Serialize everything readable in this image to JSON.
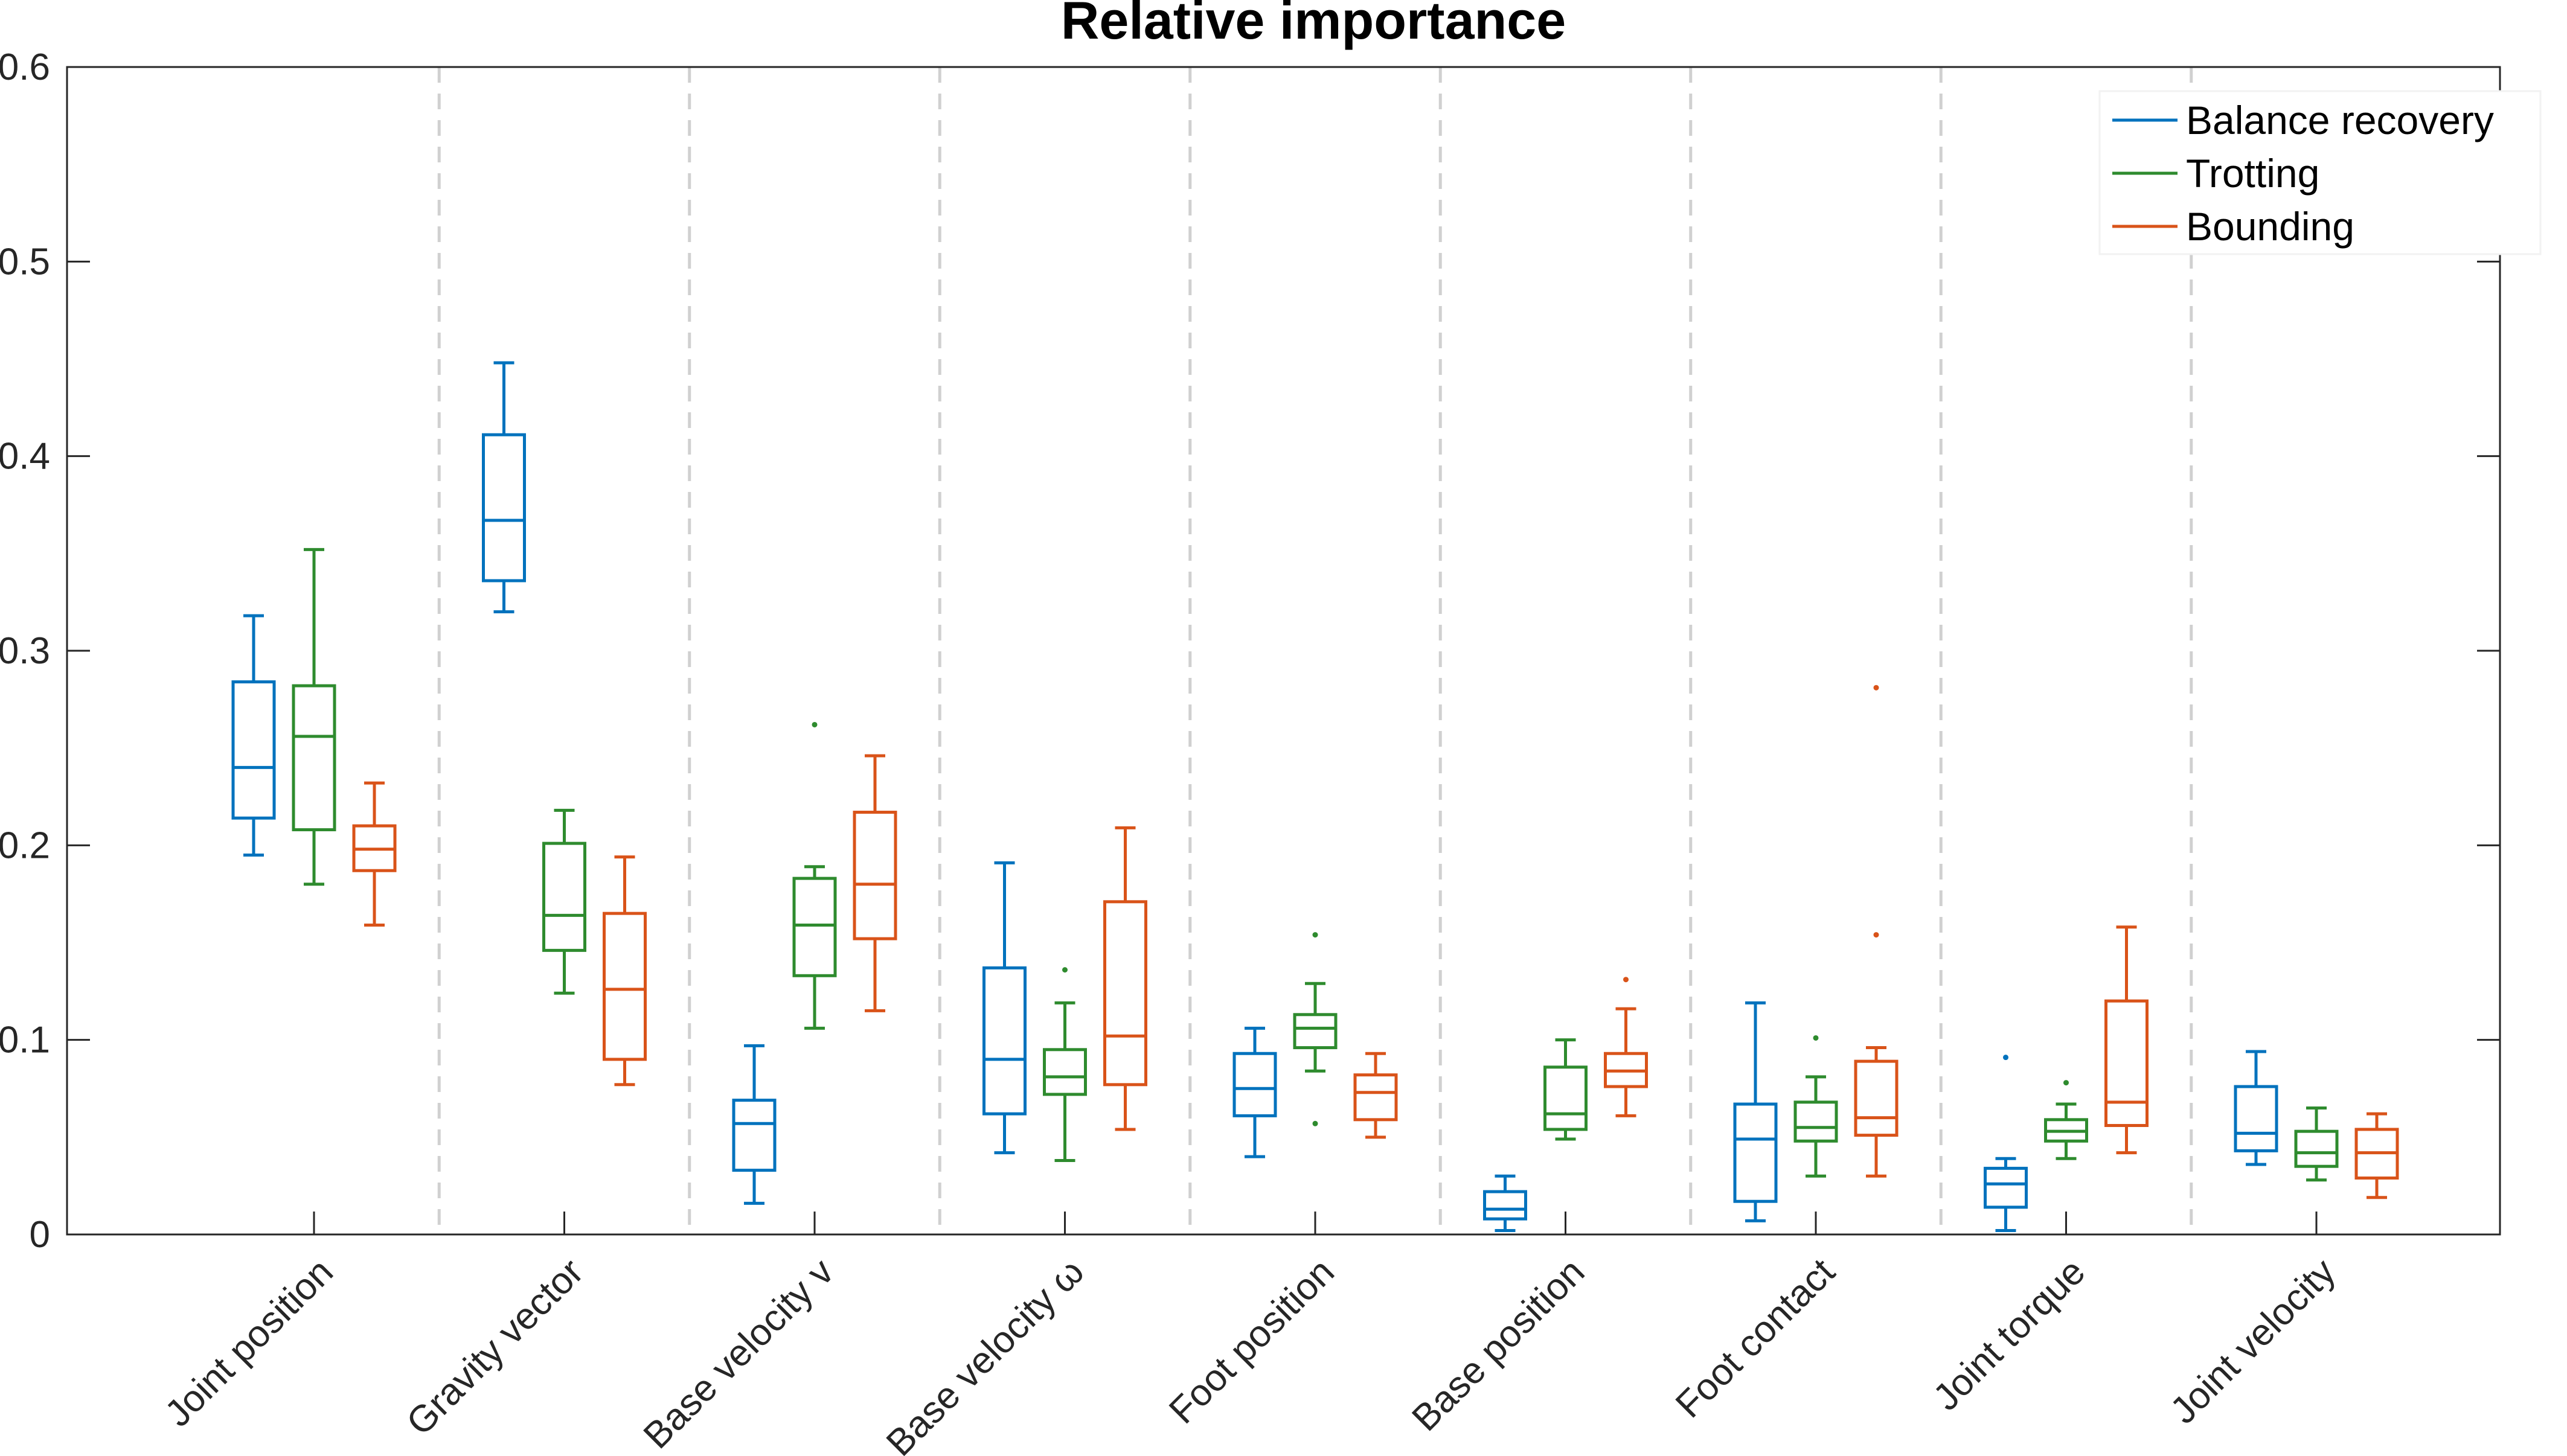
{
  "chart_data": {
    "type": "box",
    "title": "Relative importance",
    "xlabel": "",
    "ylabel": "",
    "ylim": [
      0,
      0.6
    ],
    "yticks": [
      "0",
      "0.1",
      "0.2",
      "0.3",
      "0.4",
      "0.5",
      "0.6"
    ],
    "grid": "dashed vertical separators between categories",
    "legend_position": "top-right",
    "categories": [
      "Joint position",
      "Gravity vector",
      "Base velocity v",
      "Base velocity ω",
      "Foot position",
      "Base position",
      "Foot contact",
      "Joint torque",
      "Joint velocity"
    ],
    "series": [
      {
        "name": "Balance recovery",
        "color": "#0072BD",
        "boxes": [
          {
            "whisker_low": 0.195,
            "q1": 0.214,
            "median": 0.24,
            "q3": 0.284,
            "whisker_high": 0.318,
            "outliers": []
          },
          {
            "whisker_low": 0.32,
            "q1": 0.336,
            "median": 0.367,
            "q3": 0.411,
            "whisker_high": 0.448,
            "outliers": []
          },
          {
            "whisker_low": 0.016,
            "q1": 0.033,
            "median": 0.057,
            "q3": 0.069,
            "whisker_high": 0.097,
            "outliers": []
          },
          {
            "whisker_low": 0.042,
            "q1": 0.062,
            "median": 0.09,
            "q3": 0.137,
            "whisker_high": 0.191,
            "outliers": []
          },
          {
            "whisker_low": 0.04,
            "q1": 0.061,
            "median": 0.075,
            "q3": 0.093,
            "whisker_high": 0.106,
            "outliers": []
          },
          {
            "whisker_low": 0.002,
            "q1": 0.008,
            "median": 0.013,
            "q3": 0.022,
            "whisker_high": 0.03,
            "outliers": []
          },
          {
            "whisker_low": 0.007,
            "q1": 0.017,
            "median": 0.049,
            "q3": 0.067,
            "whisker_high": 0.119,
            "outliers": []
          },
          {
            "whisker_low": 0.002,
            "q1": 0.014,
            "median": 0.026,
            "q3": 0.034,
            "whisker_high": 0.039,
            "outliers": [
              0.091
            ]
          },
          {
            "whisker_low": 0.036,
            "q1": 0.043,
            "median": 0.052,
            "q3": 0.076,
            "whisker_high": 0.094,
            "outliers": []
          }
        ]
      },
      {
        "name": "Trotting",
        "color": "#2E8B2E",
        "boxes": [
          {
            "whisker_low": 0.18,
            "q1": 0.208,
            "median": 0.256,
            "q3": 0.282,
            "whisker_high": 0.352,
            "outliers": []
          },
          {
            "whisker_low": 0.124,
            "q1": 0.146,
            "median": 0.164,
            "q3": 0.201,
            "whisker_high": 0.218,
            "outliers": []
          },
          {
            "whisker_low": 0.106,
            "q1": 0.133,
            "median": 0.159,
            "q3": 0.183,
            "whisker_high": 0.189,
            "outliers": [
              0.262
            ]
          },
          {
            "whisker_low": 0.038,
            "q1": 0.072,
            "median": 0.081,
            "q3": 0.095,
            "whisker_high": 0.119,
            "outliers": [
              0.136
            ]
          },
          {
            "whisker_low": 0.084,
            "q1": 0.096,
            "median": 0.106,
            "q3": 0.113,
            "whisker_high": 0.129,
            "outliers": [
              0.154,
              0.057
            ]
          },
          {
            "whisker_low": 0.049,
            "q1": 0.054,
            "median": 0.062,
            "q3": 0.086,
            "whisker_high": 0.1,
            "outliers": []
          },
          {
            "whisker_low": 0.03,
            "q1": 0.048,
            "median": 0.055,
            "q3": 0.068,
            "whisker_high": 0.081,
            "outliers": [
              0.101
            ]
          },
          {
            "whisker_low": 0.039,
            "q1": 0.048,
            "median": 0.053,
            "q3": 0.059,
            "whisker_high": 0.067,
            "outliers": [
              0.078
            ]
          },
          {
            "whisker_low": 0.028,
            "q1": 0.035,
            "median": 0.042,
            "q3": 0.053,
            "whisker_high": 0.065,
            "outliers": []
          }
        ]
      },
      {
        "name": "Bounding",
        "color": "#D95319",
        "boxes": [
          {
            "whisker_low": 0.159,
            "q1": 0.187,
            "median": 0.198,
            "q3": 0.21,
            "whisker_high": 0.232,
            "outliers": []
          },
          {
            "whisker_low": 0.077,
            "q1": 0.09,
            "median": 0.126,
            "q3": 0.165,
            "whisker_high": 0.194,
            "outliers": []
          },
          {
            "whisker_low": 0.115,
            "q1": 0.152,
            "median": 0.18,
            "q3": 0.217,
            "whisker_high": 0.246,
            "outliers": []
          },
          {
            "whisker_low": 0.054,
            "q1": 0.077,
            "median": 0.102,
            "q3": 0.171,
            "whisker_high": 0.209,
            "outliers": []
          },
          {
            "whisker_low": 0.05,
            "q1": 0.059,
            "median": 0.073,
            "q3": 0.082,
            "whisker_high": 0.093,
            "outliers": []
          },
          {
            "whisker_low": 0.061,
            "q1": 0.076,
            "median": 0.084,
            "q3": 0.093,
            "whisker_high": 0.116,
            "outliers": [
              0.131
            ]
          },
          {
            "whisker_low": 0.03,
            "q1": 0.051,
            "median": 0.06,
            "q3": 0.089,
            "whisker_high": 0.096,
            "outliers": [
              0.281,
              0.154
            ]
          },
          {
            "whisker_low": 0.042,
            "q1": 0.056,
            "median": 0.068,
            "q3": 0.12,
            "whisker_high": 0.158,
            "outliers": []
          },
          {
            "whisker_low": 0.019,
            "q1": 0.029,
            "median": 0.042,
            "q3": 0.054,
            "whisker_high": 0.062,
            "outliers": []
          }
        ]
      }
    ]
  }
}
